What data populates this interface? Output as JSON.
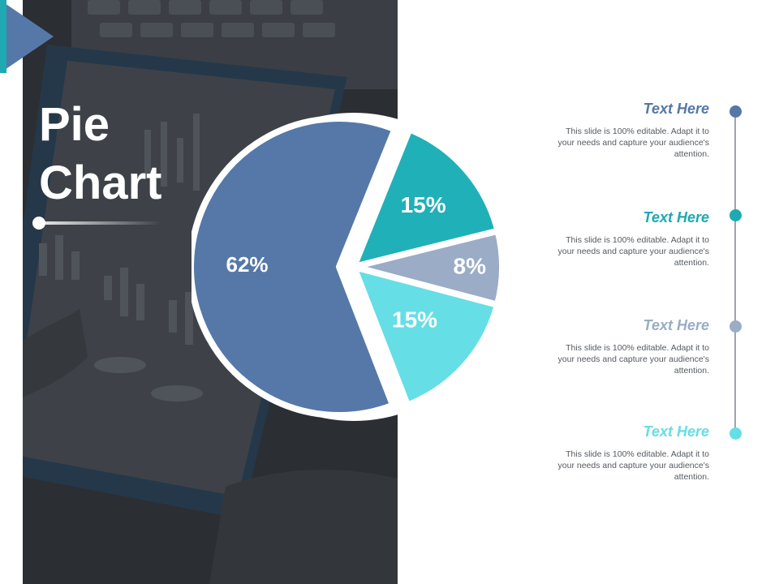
{
  "slide": {
    "title_line1": "Pie",
    "title_line2": "Chart"
  },
  "colors": {
    "slice1": "#5578a8",
    "slice2": "#20b0b8",
    "slice3": "#9aacc6",
    "slice4": "#66dee6",
    "panel": "#2b2e33",
    "accent": "#1ea9b3"
  },
  "chart_data": {
    "type": "pie",
    "slices": [
      {
        "label": "62%",
        "value": 62,
        "color": "#5578a8"
      },
      {
        "label": "15%",
        "value": 15,
        "color": "#20b0b8"
      },
      {
        "label": "8%",
        "value": 8,
        "color": "#9aacc6"
      },
      {
        "label": "15%",
        "value": 15,
        "color": "#66dee6"
      }
    ],
    "legend": "right"
  },
  "legend_items": [
    {
      "heading": "Text Here",
      "body": "This slide is 100% editable. Adapt it to your needs and capture your audience's attention.",
      "color": "#5578a8"
    },
    {
      "heading": "Text Here",
      "body": "This slide is 100% editable. Adapt it to your needs and capture your audience's attention.",
      "color": "#1ea9b3"
    },
    {
      "heading": "Text Here",
      "body": "This slide is 100% editable. Adapt it to your needs and capture your audience's attention.",
      "color": "#9aacc6"
    },
    {
      "heading": "Text Here",
      "body": "This slide is 100% editable. Adapt it to your needs and capture your audience's attention.",
      "color": "#66dee6"
    }
  ]
}
